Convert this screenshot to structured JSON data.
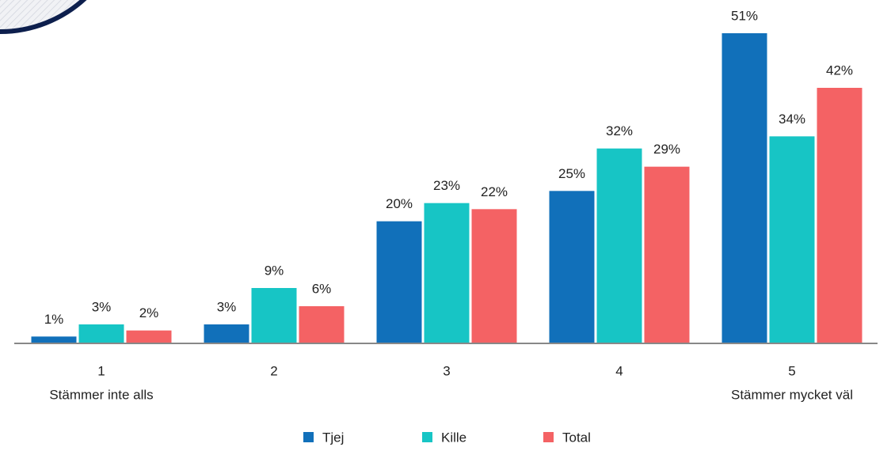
{
  "chart_data": {
    "type": "bar",
    "categories": [
      "1",
      "2",
      "3",
      "4",
      "5"
    ],
    "category_sublabels": [
      "Stämmer inte alls",
      null,
      null,
      null,
      "Stämmer mycket väl"
    ],
    "series": [
      {
        "name": "Tjej",
        "color": "#1170ba",
        "values": [
          1,
          3,
          20,
          25,
          51
        ],
        "value_labels": [
          "1%",
          "3%",
          "20%",
          "25%",
          "51%"
        ]
      },
      {
        "name": "Kille",
        "color": "#17c5c5",
        "values": [
          3,
          9,
          23,
          32,
          34
        ],
        "value_labels": [
          "3%",
          "9%",
          "23%",
          "32%",
          "34%"
        ]
      },
      {
        "name": "Total",
        "color": "#f46264",
        "values": [
          2,
          6,
          22,
          29,
          42
        ],
        "value_labels": [
          "2%",
          "6%",
          "22%",
          "29%",
          "42%"
        ]
      }
    ],
    "legend": "bottom"
  }
}
